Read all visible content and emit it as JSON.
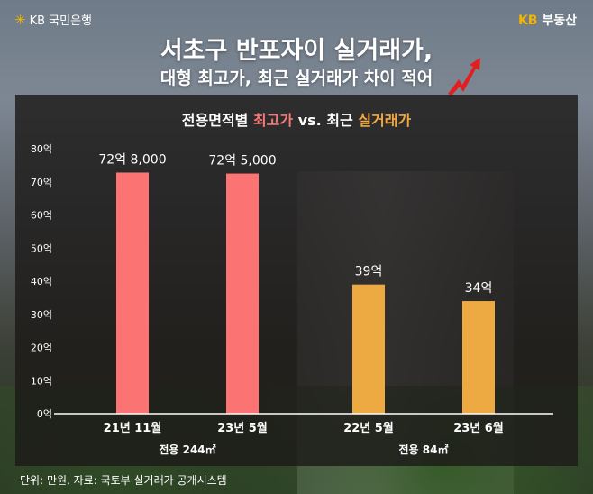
{
  "header": {
    "bank_logo": "KB 국민은행",
    "realestate_logo_kb": "KB",
    "realestate_logo_text": "부동산",
    "title_line1": "서초구 반포자이 실거래가,",
    "title_line2": "대형 최고가, 최근 실거래가 차이 적어"
  },
  "chart_data": {
    "type": "bar",
    "title": {
      "part1": "전용면적별 ",
      "part2": "최고가",
      "part3": " vs. 최근 ",
      "part4": "실거래가"
    },
    "categories": [
      "21년 11월",
      "23년 5월",
      "22년 5월",
      "23년 6월"
    ],
    "groups": [
      {
        "label": "전용 244㎡",
        "categories": [
          0,
          1
        ]
      },
      {
        "label": "전용 84㎡",
        "categories": [
          2,
          3
        ]
      }
    ],
    "values": [
      72.8,
      72.5,
      39,
      34
    ],
    "data_labels": [
      "72억 8,000",
      "72억 5,000",
      "39억",
      "34억"
    ],
    "series_types": [
      "최고가",
      "최고가",
      "실거래가",
      "실거래가"
    ],
    "colors": [
      "#fb7373",
      "#fb7373",
      "#eeaa42",
      "#eeaa42"
    ],
    "y_ticks": [
      "0억",
      "10억",
      "20억",
      "30억",
      "40억",
      "50억",
      "60억",
      "70억",
      "80억"
    ],
    "ylim": [
      0,
      80
    ],
    "ylabel": "",
    "xlabel": ""
  },
  "footer": {
    "source": "단위: 만원, 자료: 국토부 실거래가 공개시스템"
  }
}
